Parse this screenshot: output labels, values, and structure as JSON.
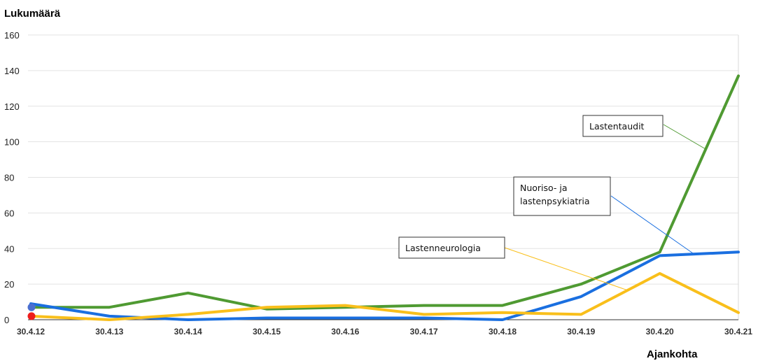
{
  "chart_data": {
    "type": "line",
    "ylabel": "Lukumäärä",
    "xlabel": "Ajankohta",
    "ylim": [
      0,
      160
    ],
    "yticks": [
      0,
      20,
      40,
      60,
      80,
      100,
      120,
      140,
      160
    ],
    "grid": true,
    "x": [
      "30.4.12",
      "30.4.13",
      "30.4.14",
      "30.4.15",
      "30.4.16",
      "30.4.17",
      "30.4.18",
      "30.4.19",
      "30.4.20",
      "30.4.21"
    ],
    "series": [
      {
        "name": "Lastentaudit",
        "color": "#4f9a32",
        "values": [
          7,
          7,
          15,
          6,
          7,
          8,
          8,
          20,
          38,
          137
        ]
      },
      {
        "name": "Nuoriso- ja lastenpsykiatria",
        "color": "#1a6fe0",
        "values": [
          9,
          2,
          0,
          1,
          1,
          1,
          0,
          13,
          36,
          38
        ]
      },
      {
        "name": "Lastenneurologia",
        "color": "#f9bf1b",
        "values": [
          2,
          0,
          3,
          7,
          8,
          3,
          4,
          3,
          26,
          4
        ]
      }
    ],
    "callouts": [
      {
        "series": 0,
        "lines": [
          "Lastentaudit"
        ]
      },
      {
        "series": 1,
        "lines": [
          "Nuoriso- ja",
          "lastenpsykiatria"
        ]
      },
      {
        "series": 2,
        "lines": [
          "Lastenneurologia"
        ]
      }
    ],
    "start_markers": [
      {
        "color": "#4a6fd0",
        "value": 7
      },
      {
        "color": "#ee1c1c",
        "value": 2
      }
    ]
  }
}
